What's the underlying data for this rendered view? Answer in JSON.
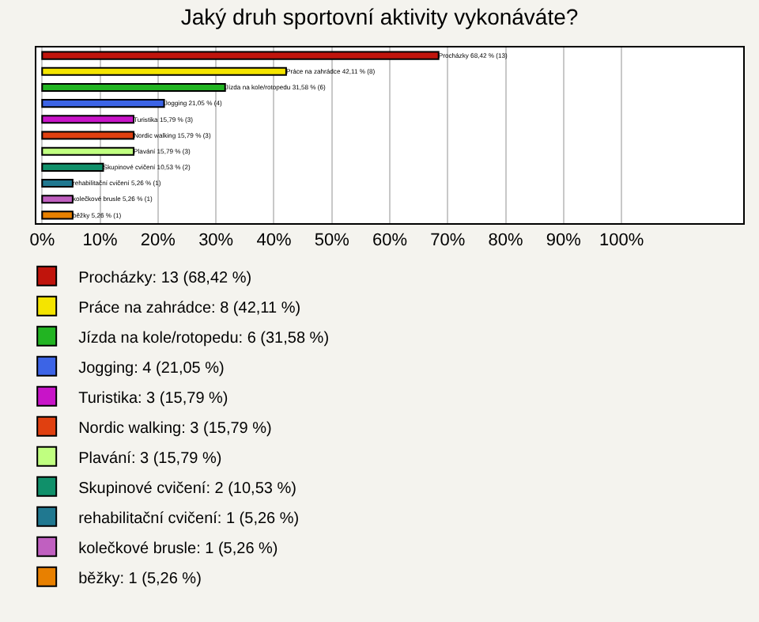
{
  "chart_data": {
    "type": "bar",
    "orientation": "horizontal",
    "title": "Jaký druh sportovní aktivity vykonáváte?",
    "categories": [
      null,
      null,
      null,
      null,
      null,
      null,
      null,
      null,
      null,
      null,
      null
    ],
    "series": [
      {
        "name": "Procházky: 13 (68,42 %)",
        "color": "#c0140c",
        "values": [
          68.42,
          null,
          null,
          null,
          null,
          null,
          null,
          null,
          null,
          null,
          null
        ],
        "value_labels": [
          "Procházky 68,42 % (13)",
          null,
          null,
          null,
          null,
          null,
          null,
          null,
          null,
          null,
          null
        ]
      },
      {
        "name": "Práce na zahrádce: 8 (42,11 %)",
        "color": "#f4e400",
        "values": [
          null,
          42.11,
          null,
          null,
          null,
          null,
          null,
          null,
          null,
          null,
          null
        ],
        "value_labels": [
          null,
          "Práce na zahrádce 42,11 % (8)",
          null,
          null,
          null,
          null,
          null,
          null,
          null,
          null,
          null
        ]
      },
      {
        "name": "Jízda na kole/rotopedu: 6 (31,58 %)",
        "color": "#22b422",
        "values": [
          null,
          null,
          31.58,
          null,
          null,
          null,
          null,
          null,
          null,
          null,
          null
        ],
        "value_labels": [
          null,
          null,
          "Jízda na kole/rotopedu 31,58 % (6)",
          null,
          null,
          null,
          null,
          null,
          null,
          null,
          null
        ]
      },
      {
        "name": "Jogging: 4 (21,05 %)",
        "color": "#3c64e6",
        "values": [
          null,
          null,
          null,
          21.05,
          null,
          null,
          null,
          null,
          null,
          null,
          null
        ],
        "value_labels": [
          null,
          null,
          null,
          "Jogging 21,05 % (4)",
          null,
          null,
          null,
          null,
          null,
          null,
          null
        ]
      },
      {
        "name": "Turistika: 3 (15,79 %)",
        "color": "#c814c8",
        "values": [
          null,
          null,
          null,
          null,
          15.79,
          null,
          null,
          null,
          null,
          null,
          null
        ],
        "value_labels": [
          null,
          null,
          null,
          null,
          "Turistika 15,79 % (3)",
          null,
          null,
          null,
          null,
          null,
          null
        ]
      },
      {
        "name": "Nordic walking: 3 (15,79 %)",
        "color": "#e04010",
        "values": [
          null,
          null,
          null,
          null,
          null,
          15.79,
          null,
          null,
          null,
          null,
          null
        ],
        "value_labels": [
          null,
          null,
          null,
          null,
          null,
          "Nordic walking 15,79 % (3)",
          null,
          null,
          null,
          null,
          null
        ]
      },
      {
        "name": "Plavání: 3 (15,79 %)",
        "color": "#c0ff80",
        "values": [
          null,
          null,
          null,
          null,
          null,
          null,
          15.79,
          null,
          null,
          null,
          null
        ],
        "value_labels": [
          null,
          null,
          null,
          null,
          null,
          null,
          "Plavání 15,79 % (3)",
          null,
          null,
          null,
          null
        ]
      },
      {
        "name": "Skupinové cvičení: 2 (10,53 %)",
        "color": "#10906a",
        "values": [
          null,
          null,
          null,
          null,
          null,
          null,
          null,
          10.53,
          null,
          null,
          null
        ],
        "value_labels": [
          null,
          null,
          null,
          null,
          null,
          null,
          null,
          "Skupinové cvičení 10,53 % (2)",
          null,
          null,
          null
        ]
      },
      {
        "name": "rehabilitační cvičení: 1 (5,26 %)",
        "color": "#207890",
        "values": [
          null,
          null,
          null,
          null,
          null,
          null,
          null,
          null,
          5.26,
          null,
          null
        ],
        "value_labels": [
          null,
          null,
          null,
          null,
          null,
          null,
          null,
          null,
          "rehabilitační cvičení 5,26 % (1)",
          null,
          null
        ]
      },
      {
        "name": "kolečkové brusle: 1 (5,26 %)",
        "color": "#c060c0",
        "values": [
          null,
          null,
          null,
          null,
          null,
          null,
          null,
          null,
          null,
          5.26,
          null
        ],
        "value_labels": [
          null,
          null,
          null,
          null,
          null,
          null,
          null,
          null,
          null,
          "kolečkové brusle 5,26 % (1)",
          null
        ]
      },
      {
        "name": "běžky: 1 (5,26 %)",
        "color": "#e88000",
        "values": [
          null,
          null,
          null,
          null,
          null,
          null,
          null,
          null,
          null,
          null,
          5.26
        ],
        "value_labels": [
          null,
          null,
          null,
          null,
          null,
          null,
          null,
          null,
          null,
          null,
          "běžky 5,26 % (1)"
        ]
      }
    ],
    "xlim": [
      -1,
      121
    ],
    "xticks": [
      {
        "value": 0,
        "label": "0%"
      },
      {
        "value": 10,
        "label": "10%"
      },
      {
        "value": 20,
        "label": "20%"
      },
      {
        "value": 30,
        "label": "30%"
      },
      {
        "value": 40,
        "label": "40%"
      },
      {
        "value": 50,
        "label": "50%"
      },
      {
        "value": 60,
        "label": "60%"
      },
      {
        "value": 70,
        "label": "70%"
      },
      {
        "value": 80,
        "label": "80%"
      },
      {
        "value": 90,
        "label": "90%"
      },
      {
        "value": 100,
        "label": "100%"
      }
    ],
    "grid": "x",
    "legend": "bottom",
    "tick_labels": "x"
  }
}
